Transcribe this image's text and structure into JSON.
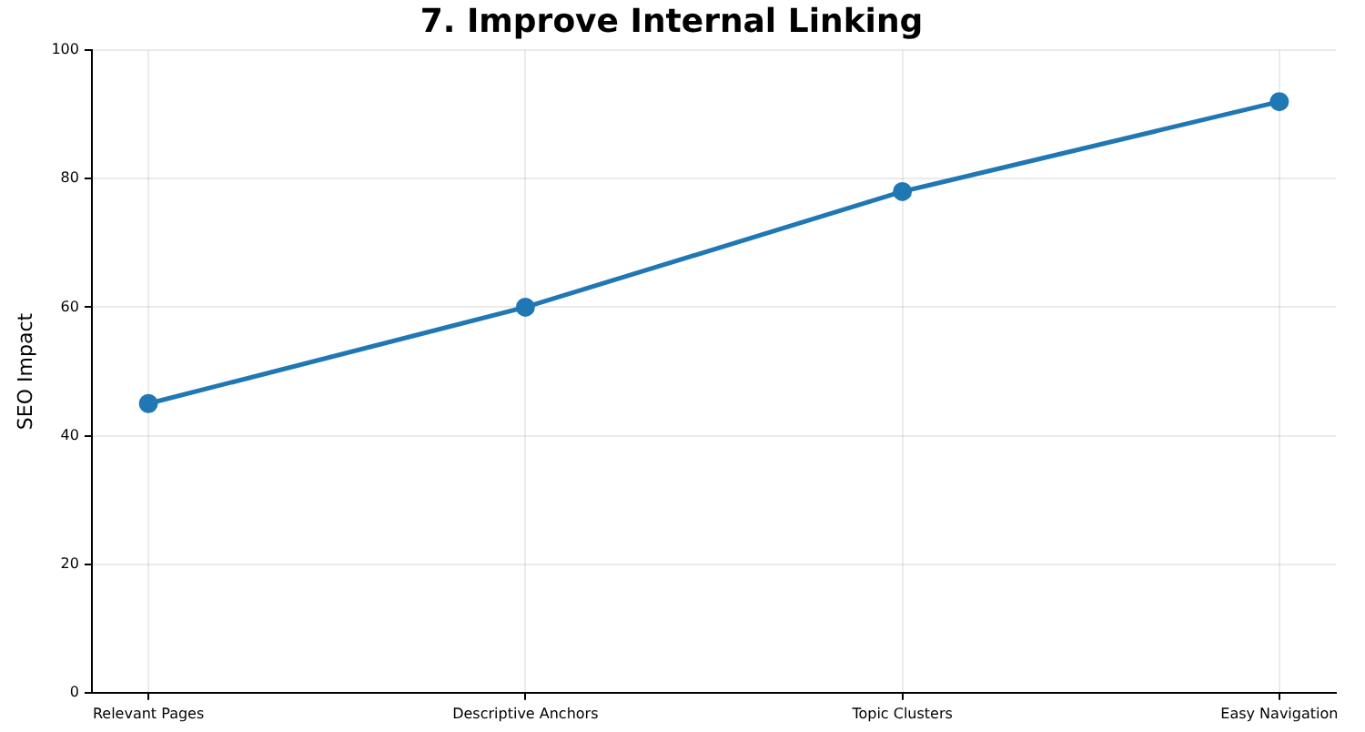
{
  "chart_data": {
    "type": "line",
    "title": "7. Improve Internal Linking",
    "ylabel": "SEO Impact",
    "categories": [
      "Relevant Pages",
      "Descriptive Anchors",
      "Topic Clusters",
      "Easy Navigation"
    ],
    "series": [
      {
        "color": "#1f77b4",
        "values": [
          45,
          60,
          78,
          92
        ]
      }
    ],
    "ylim": [
      0,
      100
    ],
    "yticks": [
      0,
      20,
      40,
      60,
      80,
      100
    ],
    "grid": true,
    "marker": "circle",
    "line_style": "solid",
    "legend": false
  }
}
